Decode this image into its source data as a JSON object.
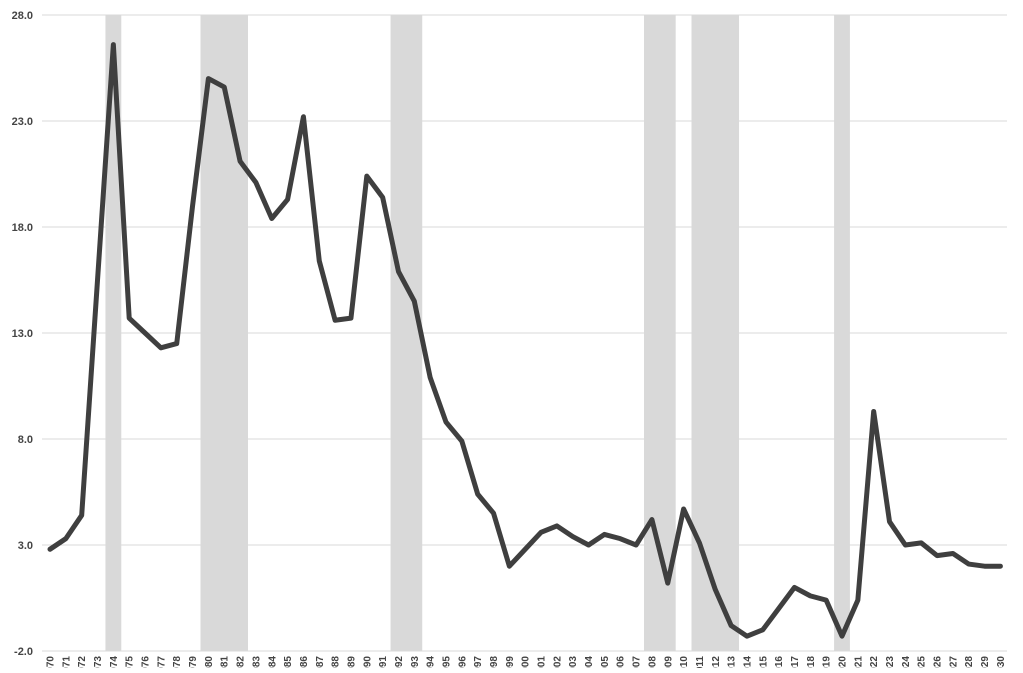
{
  "chart_data": {
    "type": "line",
    "title": "",
    "xlabel": "",
    "ylabel": "",
    "ylim": [
      -2.0,
      28.0
    ],
    "y_ticks": [
      "-2.0",
      "3.0",
      "8.0",
      "13.0",
      "18.0",
      "23.0",
      "28.0"
    ],
    "y_tick_values": [
      -2,
      3,
      8,
      13,
      18,
      23,
      28
    ],
    "grid": "horizontal",
    "legend": "none",
    "colors": {
      "line": "#3f3f3f",
      "shading": "#d9d9d9",
      "grid": "#d9d9d9",
      "text": "#444444"
    },
    "x": [
      "1970",
      "1971",
      "1972",
      "1973",
      "1974",
      "1975",
      "1976",
      "1977",
      "1978",
      "1979",
      "1980",
      "1981",
      "1982",
      "1983",
      "1984",
      "1985",
      "1986",
      "1987",
      "1988",
      "1989",
      "1990",
      "1991",
      "1992",
      "1993",
      "1994",
      "1995",
      "1996",
      "1997",
      "1998",
      "1999",
      "2000",
      "2001",
      "2002",
      "2003",
      "2004",
      "2005",
      "2006",
      "2007",
      "2008",
      "2009",
      "2010",
      "2011",
      "2012",
      "2013",
      "2014",
      "2015",
      "2016",
      "2017",
      "2018",
      "2019",
      "2020",
      "2021",
      "2022",
      "2023",
      "2024",
      "2025",
      "2026",
      "2027",
      "2028",
      "2029",
      "2030"
    ],
    "series": [
      {
        "values": [
          2.8,
          3.3,
          4.4,
          15.5,
          26.6,
          13.7,
          13.0,
          12.3,
          12.5,
          19.0,
          25.0,
          24.6,
          21.1,
          20.1,
          18.4,
          19.3,
          23.2,
          16.4,
          13.6,
          13.7,
          20.4,
          19.4,
          15.9,
          14.5,
          10.9,
          8.8,
          7.9,
          5.4,
          4.5,
          2.0,
          2.8,
          3.6,
          3.9,
          3.4,
          3.0,
          3.5,
          3.3,
          3.0,
          4.2,
          1.2,
          4.7,
          3.1,
          0.9,
          -0.8,
          -1.3,
          -1.0,
          0.0,
          1.0,
          0.6,
          0.4,
          -1.3,
          0.4,
          9.3,
          4.1,
          3.0,
          3.1,
          2.5,
          2.6,
          2.1,
          2.0,
          2.0
        ]
      }
    ],
    "shaded_periods": [
      {
        "start": "1974",
        "end": "1974"
      },
      {
        "start": "1980",
        "end": "1982"
      },
      {
        "start": "1992",
        "end": "1993"
      },
      {
        "start": "2008",
        "end": "2009"
      },
      {
        "start": "2011",
        "end": "2013"
      },
      {
        "start": "2020",
        "end": "2020"
      }
    ]
  }
}
